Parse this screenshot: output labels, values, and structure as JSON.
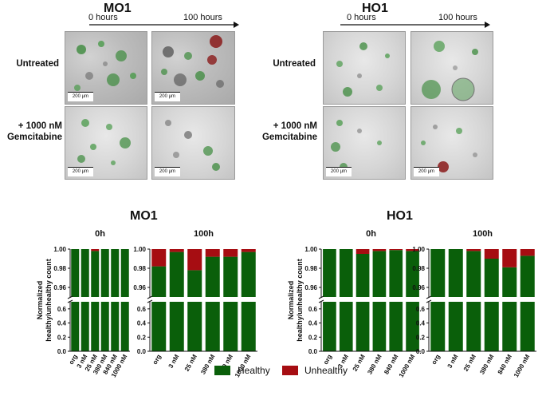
{
  "colors": {
    "healthy": "#0a5f0a",
    "unhealthy": "#a60d12",
    "microscopy_bg": "#c2c2c2"
  },
  "micrographs": {
    "left": {
      "title": "MO1",
      "time_start": "0 hours",
      "time_end": "100 hours"
    },
    "right": {
      "title": "HO1",
      "time_start": "0 hours",
      "time_end": "100 hours"
    },
    "row_labels": {
      "untreated": "Untreated",
      "treated_line1": "+ 1000 nM",
      "treated_line2": "Gemcitabine"
    },
    "scale_bar": "200 µm"
  },
  "groups": {
    "left": "MO1",
    "right": "HO1"
  },
  "legend": {
    "healthy": "Healthy",
    "unhealthy": "Unhealthy"
  },
  "chart_data": [
    {
      "type": "bar",
      "stacked": true,
      "group": "MO1",
      "title": "0h",
      "ylabel": "Normalized healthy/unhealthy count",
      "categories": [
        "org",
        "3 nM",
        "25 nM",
        "380 nM",
        "840 nM",
        "1000 nM"
      ],
      "series": [
        {
          "name": "Healthy",
          "values": [
            1.0,
            1.0,
            0.998,
            1.0,
            1.0,
            1.0
          ]
        },
        {
          "name": "Unhealthy",
          "values": [
            0.0,
            0.0,
            0.002,
            0.0,
            0.0,
            0.0
          ]
        }
      ],
      "axis_break": true,
      "ylim_lower": [
        0,
        0.6
      ],
      "yticks_lower": [
        "0.0",
        "0.2",
        "0.4",
        "0.6"
      ],
      "ylim_upper": [
        0.95,
        1.0
      ],
      "yticks_upper": [
        "0.96",
        "0.98",
        "1.00"
      ]
    },
    {
      "type": "bar",
      "stacked": true,
      "group": "MO1",
      "title": "100h",
      "ylabel": "",
      "categories": [
        "org",
        "3 nM",
        "25 nM",
        "380 nM",
        "840 nM",
        "1000 nM"
      ],
      "series": [
        {
          "name": "Healthy",
          "values": [
            0.982,
            0.997,
            0.978,
            0.992,
            0.992,
            0.997
          ]
        },
        {
          "name": "Unhealthy",
          "values": [
            0.018,
            0.003,
            0.022,
            0.008,
            0.008,
            0.003
          ]
        }
      ],
      "axis_break": true,
      "ylim_lower": [
        0,
        0.6
      ],
      "yticks_lower": [
        "0.0",
        "0.2",
        "0.4",
        "0.6"
      ],
      "ylim_upper": [
        0.95,
        1.0
      ],
      "yticks_upper": [
        "0.96",
        "0.98",
        "1.00"
      ]
    },
    {
      "type": "bar",
      "stacked": true,
      "group": "HO1",
      "title": "0h",
      "ylabel": "Normalized healthy/unhealthy count",
      "categories": [
        "org",
        "3 nM",
        "25 nM",
        "380 nM",
        "840 nM",
        "1000 nM"
      ],
      "series": [
        {
          "name": "Healthy",
          "values": [
            1.0,
            1.0,
            0.995,
            0.998,
            0.999,
            0.998
          ]
        },
        {
          "name": "Unhealthy",
          "values": [
            0.0,
            0.0,
            0.005,
            0.002,
            0.001,
            0.002
          ]
        }
      ],
      "axis_break": true,
      "ylim_lower": [
        0,
        0.6
      ],
      "yticks_lower": [
        "0.0",
        "0.2",
        "0.4",
        "0.6"
      ],
      "ylim_upper": [
        0.95,
        1.0
      ],
      "yticks_upper": [
        "0.96",
        "0.98",
        "1.00"
      ]
    },
    {
      "type": "bar",
      "stacked": true,
      "group": "HO1",
      "title": "100h",
      "ylabel": "",
      "categories": [
        "org",
        "3 nM",
        "25 nM",
        "380 nM",
        "840 nM",
        "1000 nM"
      ],
      "series": [
        {
          "name": "Healthy",
          "values": [
            1.0,
            1.0,
            0.998,
            0.99,
            0.981,
            0.993
          ]
        },
        {
          "name": "Unhealthy",
          "values": [
            0.0,
            0.0,
            0.002,
            0.01,
            0.019,
            0.007
          ]
        }
      ],
      "axis_break": true,
      "ylim_lower": [
        0,
        0.6
      ],
      "yticks_lower": [
        "0.0",
        "0.2",
        "0.4",
        "0.6"
      ],
      "ylim_upper": [
        0.95,
        1.0
      ],
      "yticks_upper": [
        "0.96",
        "0.98",
        "1.00"
      ]
    }
  ]
}
